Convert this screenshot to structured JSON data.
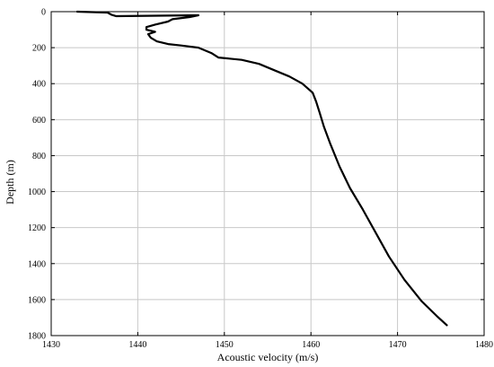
{
  "chart_data": {
    "type": "line",
    "title": "",
    "xlabel": "Acoustic velocity (m/s)",
    "ylabel": "Depth (m)",
    "xlim": [
      1430,
      1480
    ],
    "ylim": [
      0,
      1800
    ],
    "y_inverted": true,
    "grid": true,
    "xticks": [
      1430,
      1440,
      1450,
      1460,
      1470,
      1480
    ],
    "yticks": [
      0,
      200,
      400,
      600,
      800,
      1000,
      1200,
      1400,
      1600,
      1800
    ],
    "series": [
      {
        "color": "#000000",
        "points": [
          [
            1433,
            0
          ],
          [
            1436.5,
            5
          ],
          [
            1437,
            18
          ],
          [
            1437.5,
            25
          ],
          [
            1447,
            20
          ],
          [
            1446,
            30
          ],
          [
            1444,
            42
          ],
          [
            1443.5,
            55
          ],
          [
            1442,
            72
          ],
          [
            1441,
            86
          ],
          [
            1441,
            100
          ],
          [
            1442,
            112
          ],
          [
            1441.2,
            125
          ],
          [
            1441.5,
            145
          ],
          [
            1442.2,
            165
          ],
          [
            1443.5,
            180
          ],
          [
            1445,
            188
          ],
          [
            1447,
            200
          ],
          [
            1448.5,
            230
          ],
          [
            1449.3,
            255
          ],
          [
            1452,
            268
          ],
          [
            1454,
            290
          ],
          [
            1456,
            330
          ],
          [
            1457.5,
            360
          ],
          [
            1459,
            400
          ],
          [
            1460.2,
            450
          ],
          [
            1460.6,
            500
          ],
          [
            1461,
            560
          ],
          [
            1461.5,
            640
          ],
          [
            1462.2,
            730
          ],
          [
            1463.3,
            860
          ],
          [
            1464.5,
            980
          ],
          [
            1466,
            1100
          ],
          [
            1467.5,
            1230
          ],
          [
            1469,
            1360
          ],
          [
            1470.8,
            1490
          ],
          [
            1472.8,
            1610
          ],
          [
            1474.5,
            1690
          ],
          [
            1475.7,
            1742
          ]
        ]
      }
    ]
  }
}
